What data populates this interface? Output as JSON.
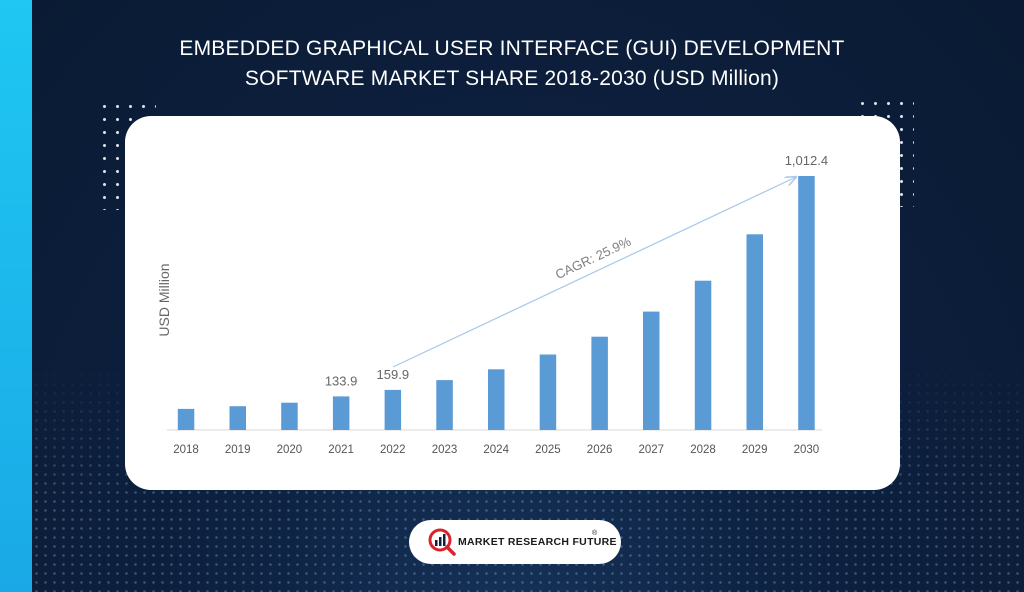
{
  "title": {
    "line1": "EMBEDDED GRAPHICAL USER INTERFACE (GUI) DEVELOPMENT",
    "line2": "SOFTWARE MARKET SHARE 2018-2030 (USD Million)"
  },
  "chart_data": {
    "type": "bar",
    "title": "EMBEDDED GRAPHICAL USER INTERFACE (GUI) DEVELOPMENT SOFTWARE MARKET SHARE 2018-2030 (USD Million)",
    "xlabel": "",
    "ylabel": "USD Million",
    "categories": [
      "2018",
      "2019",
      "2020",
      "2021",
      "2022",
      "2023",
      "2024",
      "2025",
      "2026",
      "2027",
      "2028",
      "2029",
      "2030"
    ],
    "values": [
      84,
      95,
      109,
      133.9,
      159.9,
      199,
      242,
      301,
      372,
      472,
      595,
      780,
      1012.4
    ],
    "data_labels": [
      {
        "category": "2021",
        "text": "133.9"
      },
      {
        "category": "2022",
        "text": "159.9"
      },
      {
        "category": "2030",
        "text": "1,012.4"
      }
    ],
    "annotation": "CAGR: 25.9%",
    "ylim": [
      0,
      1100
    ],
    "grid": false,
    "bar_color": "#5b9bd5"
  },
  "brand": {
    "name": "MARKET RESEARCH FUTURE",
    "registered": "®"
  },
  "colors": {
    "accent": "#1fc7f2",
    "background": "#0d2140",
    "bar": "#5b9bd5",
    "brand_red": "#d8232a"
  }
}
